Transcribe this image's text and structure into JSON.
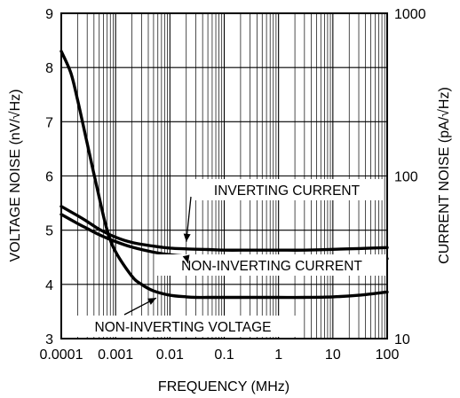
{
  "chart_data": {
    "type": "line",
    "title": "",
    "xlabel": "FREQUENCY (MHz)",
    "ylabel_left": "VOLTAGE NOISE (nV/√Hz)",
    "ylabel_right": "CURRENT NOISE (pA/√Hz)",
    "x_scale": "log",
    "xlim": [
      0.0001,
      100
    ],
    "y_left_lim": [
      3,
      9
    ],
    "y_right_scale": "log",
    "y_right_lim": [
      10,
      1000
    ],
    "grid": true,
    "x_ticks": [
      "0.0001",
      "0.001",
      "0.01",
      "0.1",
      "1",
      "10",
      "100"
    ],
    "y_left_ticks": [
      "3",
      "4",
      "5",
      "6",
      "7",
      "8",
      "9"
    ],
    "y_right_ticks": [
      "10",
      "100",
      "1000"
    ],
    "series": [
      {
        "name": "NON-INVERTING VOLTAGE",
        "axis": "left",
        "x": [
          0.0001,
          0.00015,
          0.0002,
          0.0003,
          0.0005,
          0.0007,
          0.001,
          0.002,
          0.003,
          0.005,
          0.01,
          0.02,
          0.03,
          0.05,
          0.1,
          0.3,
          1,
          3,
          10,
          30,
          100
        ],
        "y": [
          8.3,
          7.9,
          7.4,
          6.6,
          5.6,
          5.0,
          4.6,
          4.15,
          4.0,
          3.88,
          3.8,
          3.77,
          3.76,
          3.76,
          3.76,
          3.76,
          3.76,
          3.76,
          3.77,
          3.8,
          3.86
        ]
      },
      {
        "name": "INVERTING CURRENT",
        "axis": "right",
        "x": [
          0.0001,
          0.0002,
          0.0003,
          0.0005,
          0.001,
          0.002,
          0.005,
          0.01,
          0.02,
          0.05,
          0.1,
          0.3,
          1,
          3,
          10,
          30,
          100
        ],
        "y": [
          65,
          57,
          52.5,
          47,
          42,
          39,
          37,
          36,
          35.6,
          35.3,
          35,
          35,
          35,
          35,
          35.4,
          35.8,
          36.3
        ]
      },
      {
        "name": "NON-INVERTING CURRENT",
        "axis": "right",
        "x": [
          0.0001,
          0.0002,
          0.0003,
          0.0005,
          0.001,
          0.002,
          0.005,
          0.01,
          0.02,
          0.05,
          0.1,
          0.3,
          1,
          3,
          10,
          30,
          100
        ],
        "y": [
          58,
          51,
          47.5,
          43.5,
          39.5,
          36.5,
          34,
          32.8,
          32.1,
          31.7,
          31.5,
          31.4,
          31.4,
          31.3,
          31.2,
          31.1,
          31.0
        ]
      }
    ],
    "annotations": [
      {
        "text": "INVERTING CURRENT",
        "target_series": "INVERTING CURRENT",
        "x": 0.02,
        "y_right": 35.6
      },
      {
        "text": "NON-INVERTING CURRENT",
        "target_series": "NON-INVERTING CURRENT",
        "x": 0.02,
        "y_right": 32.1
      },
      {
        "text": "NON-INVERTING VOLTAGE",
        "target_series": "NON-INVERTING VOLTAGE",
        "x": 0.005,
        "y_left": 3.88
      }
    ]
  }
}
